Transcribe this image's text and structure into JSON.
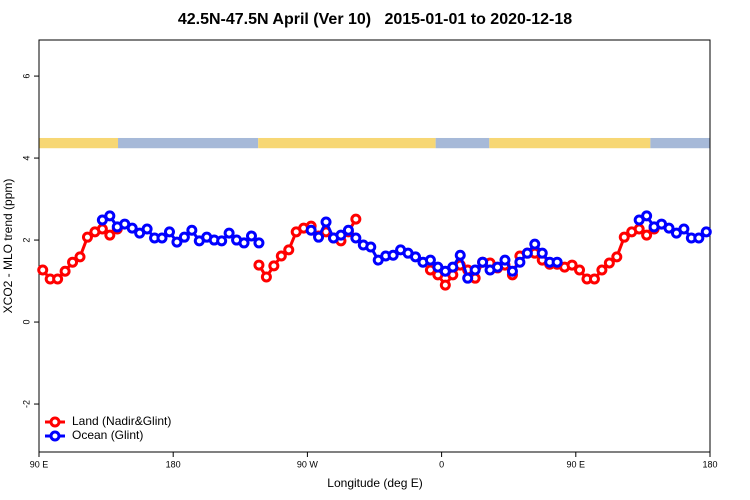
{
  "chart_data": {
    "type": "line",
    "title": "42.5N-47.5N April (Ver 10)   2015-01-01 to 2020-12-18",
    "x_label": "Longitude (deg E)",
    "y_label": "XCO2 - MLO trend (ppm)",
    "xlim": [
      90,
      540
    ],
    "ylim": [
      -3.17,
      6.88
    ],
    "xticks": [
      {
        "value": 90,
        "label": "90 E"
      },
      180,
      {
        "value": 270,
        "label": "90 W"
      },
      {
        "value": 360,
        "label": "0"
      },
      {
        "value": 450,
        "label": "90 E"
      },
      {
        "value": 540,
        "label": "180"
      }
    ],
    "yticks": [
      -2,
      0,
      2,
      4,
      6
    ],
    "legend": "bottom-left",
    "surface_strip": {
      "y_range": [
        4.24,
        4.49
      ],
      "segments": [
        {
          "from": 90,
          "to": 143,
          "color": "#f7d774"
        },
        {
          "from": 143,
          "to": 237,
          "color": "#a6b9d8"
        },
        {
          "from": 237,
          "to": 356,
          "color": "#f7d774"
        },
        {
          "from": 356,
          "to": 392,
          "color": "#a6b9d8"
        },
        {
          "from": 392,
          "to": 500,
          "color": "#f7d774"
        },
        {
          "from": 500,
          "to": 540,
          "color": "#a6b9d8"
        }
      ]
    },
    "x": [
      92.5,
      97.5,
      102.5,
      107.5,
      112.5,
      117.5,
      122.5,
      127.5,
      132.5,
      137.5,
      142.5,
      147.5,
      152.5,
      157.5,
      162.5,
      167.5,
      172.5,
      177.5,
      182.5,
      187.5,
      192.5,
      197.5,
      202.5,
      207.5,
      212.5,
      217.5,
      222.5,
      227.5,
      232.5,
      237.5,
      242.5,
      247.5,
      252.5,
      257.5,
      262.5,
      267.5,
      272.5,
      277.5,
      282.5,
      287.5,
      292.5,
      297.5,
      302.5,
      307.5,
      312.5,
      317.5,
      322.5,
      327.5,
      332.5,
      337.5,
      342.5,
      347.5,
      352.5,
      357.5,
      362.5,
      367.5,
      372.5,
      377.5,
      382.5,
      387.5,
      392.5,
      397.5,
      402.5,
      407.5,
      412.5,
      417.5,
      422.5,
      427.5,
      432.5,
      437.5,
      442.5,
      447.5,
      452.5,
      457.5,
      462.5,
      467.5,
      472.5,
      477.5,
      482.5,
      487.5,
      492.5,
      497.5,
      502.5,
      507.5,
      512.5,
      517.5,
      522.5,
      527.5,
      532.5,
      537.5
    ],
    "series": [
      {
        "name": "Land (Nadir&Glint)",
        "color": "#ff0000",
        "values": [
          1.27,
          1.05,
          1.05,
          1.24,
          1.46,
          1.59,
          2.07,
          2.2,
          2.27,
          2.12,
          2.27,
          null,
          null,
          null,
          null,
          null,
          null,
          null,
          null,
          null,
          null,
          null,
          null,
          null,
          null,
          null,
          null,
          null,
          null,
          1.39,
          1.1,
          1.37,
          1.61,
          1.76,
          2.2,
          2.29,
          2.34,
          2.1,
          2.2,
          2.05,
          1.98,
          2.2,
          2.51,
          null,
          null,
          null,
          null,
          null,
          null,
          null,
          null,
          null,
          1.27,
          1.15,
          0.9,
          1.15,
          1.39,
          1.27,
          1.07,
          1.46,
          1.44,
          1.32,
          1.39,
          1.15,
          1.61,
          1.68,
          1.68,
          1.51,
          1.41,
          1.41,
          1.34,
          1.39,
          1.27,
          1.05,
          1.05,
          1.27,
          1.44,
          1.59,
          2.07,
          2.2,
          2.27,
          2.12,
          2.27,
          null,
          null,
          null,
          null,
          null,
          null,
          null
        ]
      },
      {
        "name": "Ocean (Glint)",
        "color": "#0000ff",
        "values": [
          null,
          null,
          null,
          null,
          null,
          null,
          null,
          null,
          2.49,
          2.59,
          2.32,
          2.39,
          2.29,
          2.17,
          2.27,
          2.05,
          2.05,
          2.2,
          1.95,
          2.07,
          2.24,
          1.98,
          2.07,
          2.0,
          1.98,
          2.17,
          2.0,
          1.93,
          2.1,
          1.93,
          null,
          null,
          null,
          null,
          null,
          null,
          2.24,
          2.07,
          2.44,
          2.05,
          2.12,
          2.24,
          2.05,
          1.88,
          1.83,
          1.51,
          1.61,
          1.63,
          1.76,
          1.68,
          1.59,
          1.46,
          1.51,
          1.34,
          1.24,
          1.34,
          1.63,
          1.07,
          1.27,
          1.46,
          1.27,
          1.34,
          1.51,
          1.24,
          1.46,
          1.68,
          1.9,
          1.68,
          1.46,
          1.46,
          null,
          null,
          null,
          null,
          null,
          null,
          null,
          null,
          null,
          null,
          2.49,
          2.59,
          2.32,
          2.39,
          2.29,
          2.17,
          2.27,
          2.05,
          2.05,
          2.2
        ]
      }
    ]
  }
}
